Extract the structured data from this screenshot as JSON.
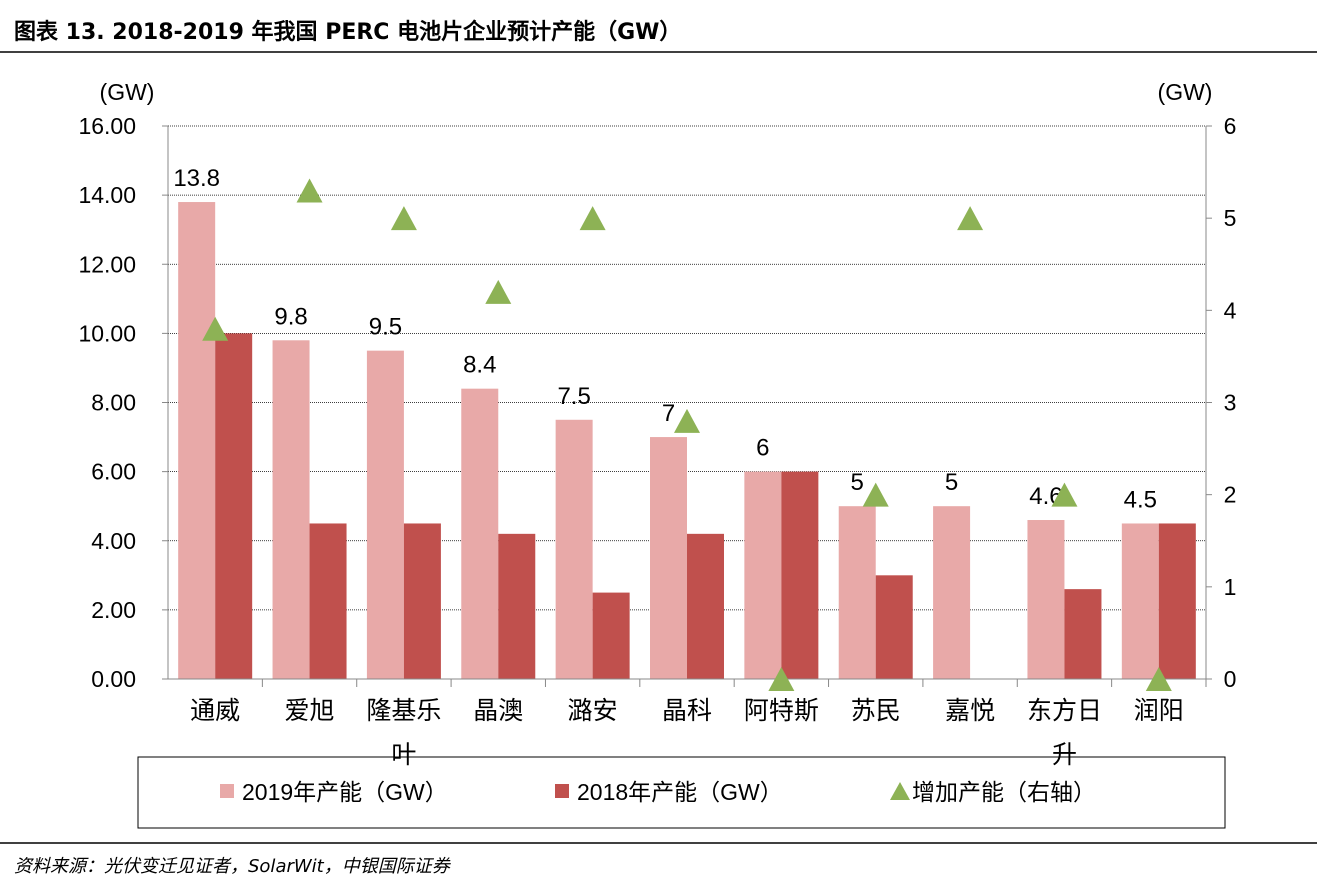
{
  "title": "图表 13. 2018-2019 年我国 PERC 电池片企业预计产能（GW）",
  "source": "资料来源：光伏变迁见证者，SolarWit，中银国际证券",
  "chart_data": {
    "type": "bar",
    "title": "图表 13. 2018-2019 年我国 PERC 电池片企业预计产能（GW）",
    "left_unit": "(GW)",
    "right_unit": "(GW)",
    "categories": [
      "通威",
      "爱旭",
      "隆基乐叶",
      "晶澳",
      "潞安",
      "晶科",
      "阿特斯",
      "苏民",
      "嘉悦",
      "东方日升",
      "润阳"
    ],
    "category_lines": [
      [
        "通威"
      ],
      [
        "爱旭"
      ],
      [
        "隆基乐",
        "叶"
      ],
      [
        "晶澳"
      ],
      [
        "潞安"
      ],
      [
        "晶科"
      ],
      [
        "阿特斯"
      ],
      [
        "苏民"
      ],
      [
        "嘉悦"
      ],
      [
        "东方日",
        "升"
      ],
      [
        "润阳"
      ]
    ],
    "series": [
      {
        "name": "2019年产能（GW）",
        "type": "bar",
        "axis": "left",
        "color": "#E8A9A8",
        "values": [
          13.8,
          9.8,
          9.5,
          8.4,
          7.5,
          7,
          6,
          5,
          5,
          4.6,
          4.5
        ],
        "labels": [
          "13.8",
          "9.8",
          "9.5",
          "8.4",
          "7.5",
          "7",
          "6",
          "5",
          "5",
          "4.6",
          "4.5"
        ]
      },
      {
        "name": "2018年产能（GW）",
        "type": "bar",
        "axis": "left",
        "color": "#C0504D",
        "values": [
          10,
          4.5,
          4.5,
          4.2,
          2.5,
          4.2,
          6,
          3,
          null,
          2.6,
          4.5
        ]
      },
      {
        "name": "增加产能（右轴）",
        "type": "scatter",
        "marker": "triangle",
        "axis": "right",
        "color": "#8DB255",
        "values": [
          3.8,
          5.3,
          5,
          4.2,
          5,
          2.8,
          0,
          2,
          5,
          2,
          0
        ]
      }
    ],
    "ylim_left": [
      0,
      16
    ],
    "yticks_left": [
      "0.00",
      "2.00",
      "4.00",
      "6.00",
      "8.00",
      "10.00",
      "12.00",
      "14.00",
      "16.00"
    ],
    "ylim_right": [
      0,
      6
    ],
    "yticks_right": [
      "0",
      "1",
      "2",
      "3",
      "4",
      "5",
      "6"
    ],
    "grid": true,
    "legend_position": "bottom"
  }
}
